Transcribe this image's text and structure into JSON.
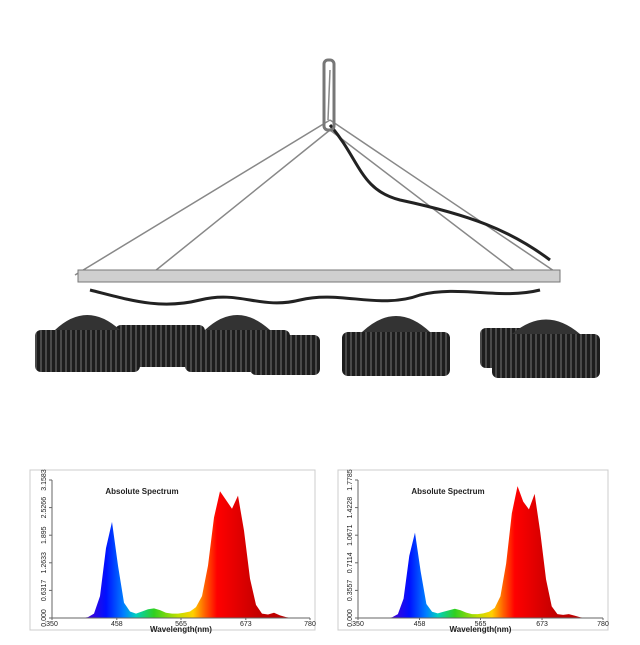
{
  "chart_data": [
    {
      "type": "area",
      "title": "Absolute Spectrum",
      "x_label": "Wavelength(nm)",
      "x": [
        350,
        360,
        370,
        380,
        390,
        400,
        410,
        420,
        430,
        440,
        450,
        460,
        470,
        480,
        490,
        500,
        510,
        520,
        530,
        540,
        550,
        560,
        570,
        580,
        590,
        600,
        610,
        620,
        630,
        640,
        650,
        660,
        670,
        680,
        690,
        700,
        710,
        720,
        730,
        740,
        750,
        760,
        770,
        780
      ],
      "values": [
        0,
        0,
        0,
        0,
        0,
        0,
        0.02,
        0.1,
        0.5,
        1.6,
        2.2,
        1.2,
        0.35,
        0.15,
        0.1,
        0.15,
        0.2,
        0.22,
        0.18,
        0.12,
        0.1,
        0.1,
        0.12,
        0.15,
        0.25,
        0.5,
        1.2,
        2.3,
        2.9,
        2.7,
        2.5,
        2.8,
        2.0,
        0.9,
        0.3,
        0.1,
        0.08,
        0.12,
        0.06,
        0.02,
        0,
        0,
        0,
        0
      ],
      "xlim": [
        350,
        780
      ],
      "xticks": [
        350,
        458,
        565,
        673,
        780
      ],
      "ylim": [
        0,
        3.1583
      ],
      "yticks": [
        {
          "value": 0,
          "label": "0.000"
        },
        0.6317,
        1.2633,
        1.895,
        2.5266,
        3.1583
      ]
    },
    {
      "type": "area",
      "title": "Absolute Spectrum",
      "x_label": "Wavelength(nm)",
      "x": [
        350,
        360,
        370,
        380,
        390,
        400,
        410,
        420,
        430,
        440,
        450,
        460,
        470,
        480,
        490,
        500,
        510,
        520,
        530,
        540,
        550,
        560,
        570,
        580,
        590,
        600,
        610,
        620,
        630,
        640,
        650,
        660,
        670,
        680,
        690,
        700,
        710,
        720,
        730,
        740,
        750,
        760,
        770,
        780
      ],
      "values": [
        0,
        0,
        0,
        0,
        0,
        0,
        0.01,
        0.05,
        0.25,
        0.8,
        1.1,
        0.6,
        0.18,
        0.08,
        0.06,
        0.08,
        0.1,
        0.12,
        0.1,
        0.07,
        0.05,
        0.05,
        0.06,
        0.08,
        0.13,
        0.28,
        0.7,
        1.35,
        1.7,
        1.5,
        1.4,
        1.6,
        1.1,
        0.5,
        0.15,
        0.05,
        0.04,
        0.05,
        0.03,
        0.01,
        0,
        0,
        0,
        0
      ],
      "xlim": [
        350,
        780
      ],
      "xticks": [
        350,
        458,
        565,
        673,
        780
      ],
      "ylim": [
        0,
        1.7785
      ],
      "yticks": [
        {
          "value": 0,
          "label": "0.000"
        },
        0.3557,
        0.7114,
        1.0671,
        1.4228,
        1.7785
      ]
    }
  ]
}
